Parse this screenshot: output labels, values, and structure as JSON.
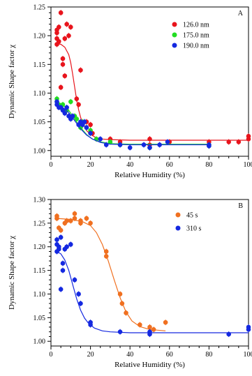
{
  "chart_data": [
    {
      "type": "scatter",
      "panel_label": "A",
      "xlabel": "Relative Humidity (%)",
      "ylabel": "Dynamic Shape factor χ",
      "xlim": [
        0,
        100
      ],
      "ylim": [
        0.99,
        1.25
      ],
      "x_ticks": [
        0,
        20,
        40,
        60,
        80,
        100
      ],
      "y_ticks": [
        1.0,
        1.05,
        1.1,
        1.15,
        1.2,
        1.25
      ],
      "x_tick_labels": [
        "0",
        "20",
        "40",
        "60",
        "80",
        "100"
      ],
      "y_tick_labels": [
        "1.00",
        "1.05",
        "1.10",
        "1.15",
        "1.20",
        "1.25"
      ],
      "legend_position": "top-right",
      "series": [
        {
          "name": "126.0 nm",
          "color": "#e8141c",
          "x": [
            3,
            3,
            3,
            3,
            4,
            4,
            5,
            5,
            6,
            6,
            7,
            7,
            8,
            9,
            10,
            13,
            14,
            15,
            18,
            20,
            21,
            30,
            35,
            50,
            50,
            60,
            80,
            90,
            95,
            100,
            100
          ],
          "y": [
            1.21,
            1.205,
            1.195,
            1.185,
            1.215,
            1.19,
            1.24,
            1.11,
            1.16,
            1.15,
            1.195,
            1.13,
            1.22,
            1.2,
            1.215,
            1.09,
            1.08,
            1.14,
            1.05,
            1.045,
            1.03,
            1.02,
            1.015,
            1.02,
            1.01,
            1.015,
            1.015,
            1.015,
            1.015,
            1.025,
            1.02
          ],
          "fit": {
            "x": [
              3,
              5,
              7,
              9,
              10,
              11,
              12,
              13,
              14,
              15,
              16,
              18,
              20,
              23,
              26,
              30,
              40,
              60,
              80,
              100
            ],
            "y": [
              1.186,
              1.185,
              1.18,
              1.167,
              1.153,
              1.133,
              1.11,
              1.088,
              1.071,
              1.058,
              1.048,
              1.035,
              1.028,
              1.022,
              1.02,
              1.019,
              1.018,
              1.018,
              1.018,
              1.018
            ]
          }
        },
        {
          "name": "175.0 nm",
          "color": "#22dd22",
          "x": [
            3,
            3,
            4,
            5,
            6,
            8,
            10,
            12,
            13,
            15,
            16,
            18,
            20,
            23,
            30,
            35,
            50,
            80,
            80
          ],
          "y": [
            1.09,
            1.085,
            1.08,
            1.075,
            1.08,
            1.07,
            1.085,
            1.06,
            1.055,
            1.04,
            1.05,
            1.04,
            1.035,
            1.02,
            1.015,
            1.01,
            1.005,
            1.01,
            1.008
          ],
          "fit": {
            "x": [
              3,
              6,
              9,
              12,
              15,
              18,
              21,
              25,
              30,
              40,
              60,
              80
            ],
            "y": [
              1.082,
              1.079,
              1.07,
              1.055,
              1.04,
              1.028,
              1.02,
              1.015,
              1.012,
              1.011,
              1.011,
              1.011
            ]
          }
        },
        {
          "name": "190.0 nm",
          "color": "#1428e0",
          "x": [
            3,
            3,
            4,
            5,
            6,
            7,
            8,
            9,
            10,
            11,
            14,
            15,
            16,
            17,
            18,
            20,
            25,
            28,
            35,
            40,
            47,
            50,
            55,
            59,
            80,
            80
          ],
          "y": [
            1.085,
            1.08,
            1.075,
            1.075,
            1.07,
            1.065,
            1.075,
            1.06,
            1.055,
            1.06,
            1.045,
            1.05,
            1.045,
            1.05,
            1.04,
            1.03,
            1.02,
            1.01,
            1.01,
            1.005,
            1.01,
            1.005,
            1.01,
            1.015,
            1.01,
            1.008
          ],
          "fit": {
            "x": [
              3,
              6,
              9,
              12,
              15,
              18,
              21,
              25,
              30,
              40,
              60,
              80
            ],
            "y": [
              1.079,
              1.075,
              1.066,
              1.052,
              1.038,
              1.027,
              1.02,
              1.014,
              1.011,
              1.01,
              1.01,
              1.01
            ]
          }
        }
      ]
    },
    {
      "type": "scatter",
      "panel_label": "B",
      "xlabel": "Relative Humidity (%)",
      "ylabel": "Dynamic Shape factor χ",
      "xlim": [
        0,
        100
      ],
      "ylim": [
        0.99,
        1.3
      ],
      "x_ticks": [
        0,
        20,
        40,
        60,
        80,
        100
      ],
      "y_ticks": [
        1.0,
        1.05,
        1.1,
        1.15,
        1.2,
        1.25,
        1.3
      ],
      "x_tick_labels": [
        "0",
        "20",
        "40",
        "60",
        "80",
        "100"
      ],
      "y_tick_labels": [
        "1.00",
        "1.05",
        "1.10",
        "1.15",
        "1.20",
        "1.25",
        "1.30"
      ],
      "legend_position": "top-right",
      "series": [
        {
          "name": "45 s",
          "color": "#f07020",
          "x": [
            3,
            3,
            4,
            5,
            7,
            8,
            10,
            12,
            12,
            15,
            15,
            18,
            20,
            28,
            28,
            35,
            36,
            38,
            45,
            50,
            52,
            58
          ],
          "y": [
            1.265,
            1.26,
            1.24,
            1.235,
            1.25,
            1.255,
            1.255,
            1.27,
            1.26,
            1.25,
            1.255,
            1.26,
            1.25,
            1.19,
            1.18,
            1.1,
            1.08,
            1.06,
            1.035,
            1.03,
            1.025,
            1.04
          ],
          "fit": {
            "x": [
              3,
              10,
              16,
              20,
              23,
              26,
              29,
              32,
              35,
              38,
              41,
              45,
              50,
              58
            ],
            "y": [
              1.26,
              1.258,
              1.253,
              1.245,
              1.23,
              1.205,
              1.17,
              1.13,
              1.092,
              1.062,
              1.043,
              1.031,
              1.025,
              1.022
            ]
          }
        },
        {
          "name": "310 s",
          "color": "#1428e0",
          "x": [
            3,
            3,
            3,
            4,
            4,
            5,
            5,
            6,
            6,
            7,
            8,
            10,
            12,
            14,
            15,
            20,
            20,
            35,
            50,
            50,
            90,
            100,
            100
          ],
          "y": [
            1.215,
            1.205,
            1.19,
            1.2,
            1.195,
            1.22,
            1.11,
            1.165,
            1.15,
            1.195,
            1.2,
            1.205,
            1.13,
            1.1,
            1.08,
            1.04,
            1.035,
            1.02,
            1.02,
            1.015,
            1.015,
            1.025,
            1.03
          ],
          "fit": {
            "x": [
              3,
              5,
              7,
              9,
              11,
              13,
              15,
              17,
              19,
              22,
              26,
              30,
              40,
              60,
              80,
              100
            ],
            "y": [
              1.19,
              1.185,
              1.172,
              1.15,
              1.12,
              1.09,
              1.066,
              1.049,
              1.038,
              1.028,
              1.022,
              1.02,
              1.018,
              1.018,
              1.018,
              1.018
            ]
          }
        }
      ]
    }
  ]
}
